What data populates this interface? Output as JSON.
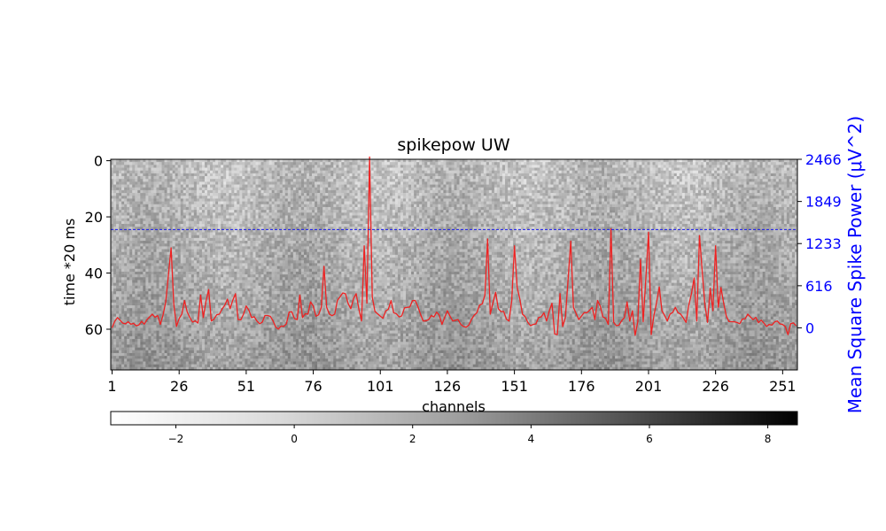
{
  "chart_data": {
    "type": "heatmap",
    "title": "spikepow UW",
    "xlabel": "channels",
    "ylabel": "time *20 ms",
    "y2label": "Mean Square Spike Power (μV^2)",
    "x_ticks": [
      "1",
      "26",
      "51",
      "76",
      "101",
      "126",
      "151",
      "176",
      "201",
      "226",
      "251"
    ],
    "y_ticks": [
      "0",
      "20",
      "40",
      "60"
    ],
    "y2_ticks": [
      "2466",
      "1849",
      "1233",
      "616",
      "0"
    ],
    "colorbar_ticks": [
      "−2",
      "0",
      "2",
      "4",
      "6",
      "8"
    ],
    "colorbar_range": [
      -3.1,
      8.5
    ],
    "colormap": "Greys",
    "heatmap_shape": {
      "channels": 256,
      "time_bins": 75
    },
    "heatmap_value_range_typical": [
      -1.5,
      3.5
    ],
    "overlay_line": {
      "name": "Mean Square Spike Power",
      "color": "#ee2222",
      "y2_range": [
        -616,
        2466
      ],
      "anchors": [
        [
          1,
          0
        ],
        [
          3,
          150
        ],
        [
          6,
          60
        ],
        [
          10,
          30
        ],
        [
          14,
          120
        ],
        [
          16,
          200
        ],
        [
          18,
          180
        ],
        [
          19,
          50
        ],
        [
          21,
          380
        ],
        [
          23,
          1170
        ],
        [
          24,
          350
        ],
        [
          25,
          20
        ],
        [
          27,
          200
        ],
        [
          28,
          400
        ],
        [
          30,
          150
        ],
        [
          33,
          70
        ],
        [
          34,
          480
        ],
        [
          35,
          150
        ],
        [
          37,
          560
        ],
        [
          38,
          100
        ],
        [
          41,
          200
        ],
        [
          44,
          420
        ],
        [
          45,
          280
        ],
        [
          47,
          500
        ],
        [
          48,
          120
        ],
        [
          50,
          200
        ],
        [
          51,
          320
        ],
        [
          53,
          150
        ],
        [
          56,
          60
        ],
        [
          59,
          180
        ],
        [
          62,
          10
        ],
        [
          66,
          60
        ],
        [
          67,
          230
        ],
        [
          70,
          120
        ],
        [
          71,
          480
        ],
        [
          72,
          150
        ],
        [
          74,
          200
        ],
        [
          75,
          380
        ],
        [
          77,
          170
        ],
        [
          79,
          300
        ],
        [
          80,
          900
        ],
        [
          81,
          300
        ],
        [
          82,
          200
        ],
        [
          84,
          200
        ],
        [
          85,
          400
        ],
        [
          88,
          500
        ],
        [
          90,
          280
        ],
        [
          92,
          500
        ],
        [
          94,
          100
        ],
        [
          95,
          1200
        ],
        [
          96,
          360
        ],
        [
          97,
          2500
        ],
        [
          98,
          450
        ],
        [
          99,
          240
        ],
        [
          102,
          140
        ],
        [
          105,
          400
        ],
        [
          106,
          220
        ],
        [
          108,
          160
        ],
        [
          111,
          300
        ],
        [
          114,
          400
        ],
        [
          117,
          100
        ],
        [
          120,
          180
        ],
        [
          122,
          230
        ],
        [
          124,
          50
        ],
        [
          126,
          250
        ],
        [
          128,
          100
        ],
        [
          130,
          120
        ],
        [
          132,
          20
        ],
        [
          134,
          40
        ],
        [
          137,
          220
        ],
        [
          140,
          480
        ],
        [
          141,
          1300
        ],
        [
          142,
          200
        ],
        [
          144,
          520
        ],
        [
          145,
          280
        ],
        [
          147,
          240
        ],
        [
          149,
          100
        ],
        [
          150,
          400
        ],
        [
          151,
          1200
        ],
        [
          152,
          600
        ],
        [
          154,
          200
        ],
        [
          156,
          80
        ],
        [
          158,
          50
        ],
        [
          160,
          150
        ],
        [
          162,
          220
        ],
        [
          163,
          100
        ],
        [
          165,
          360
        ],
        [
          166,
          -90
        ],
        [
          167,
          -100
        ],
        [
          168,
          500
        ],
        [
          169,
          20
        ],
        [
          170,
          150
        ],
        [
          171,
          700
        ],
        [
          172,
          1270
        ],
        [
          173,
          300
        ],
        [
          175,
          120
        ],
        [
          178,
          220
        ],
        [
          180,
          300
        ],
        [
          181,
          120
        ],
        [
          182,
          400
        ],
        [
          184,
          160
        ],
        [
          186,
          50
        ],
        [
          187,
          1450
        ],
        [
          188,
          80
        ],
        [
          190,
          40
        ],
        [
          192,
          150
        ],
        [
          193,
          380
        ],
        [
          194,
          100
        ],
        [
          195,
          250
        ],
        [
          196,
          -110
        ],
        [
          197,
          90
        ],
        [
          198,
          1000
        ],
        [
          199,
          90
        ],
        [
          201,
          1400
        ],
        [
          202,
          -100
        ],
        [
          203,
          180
        ],
        [
          205,
          600
        ],
        [
          206,
          250
        ],
        [
          208,
          100
        ],
        [
          211,
          300
        ],
        [
          213,
          200
        ],
        [
          215,
          80
        ],
        [
          217,
          500
        ],
        [
          218,
          730
        ],
        [
          219,
          100
        ],
        [
          220,
          1350
        ],
        [
          221,
          830
        ],
        [
          222,
          340
        ],
        [
          223,
          80
        ],
        [
          224,
          580
        ],
        [
          225,
          250
        ],
        [
          226,
          1200
        ],
        [
          227,
          300
        ],
        [
          228,
          590
        ],
        [
          230,
          170
        ],
        [
          232,
          90
        ],
        [
          235,
          60
        ],
        [
          238,
          200
        ],
        [
          240,
          120
        ],
        [
          244,
          70
        ],
        [
          246,
          50
        ],
        [
          249,
          100
        ],
        [
          251,
          50
        ],
        [
          253,
          -100
        ],
        [
          254,
          60
        ],
        [
          256,
          30
        ]
      ]
    },
    "reference_line": {
      "color": "#1a1aee",
      "style": "dashed",
      "y": 25
    }
  }
}
